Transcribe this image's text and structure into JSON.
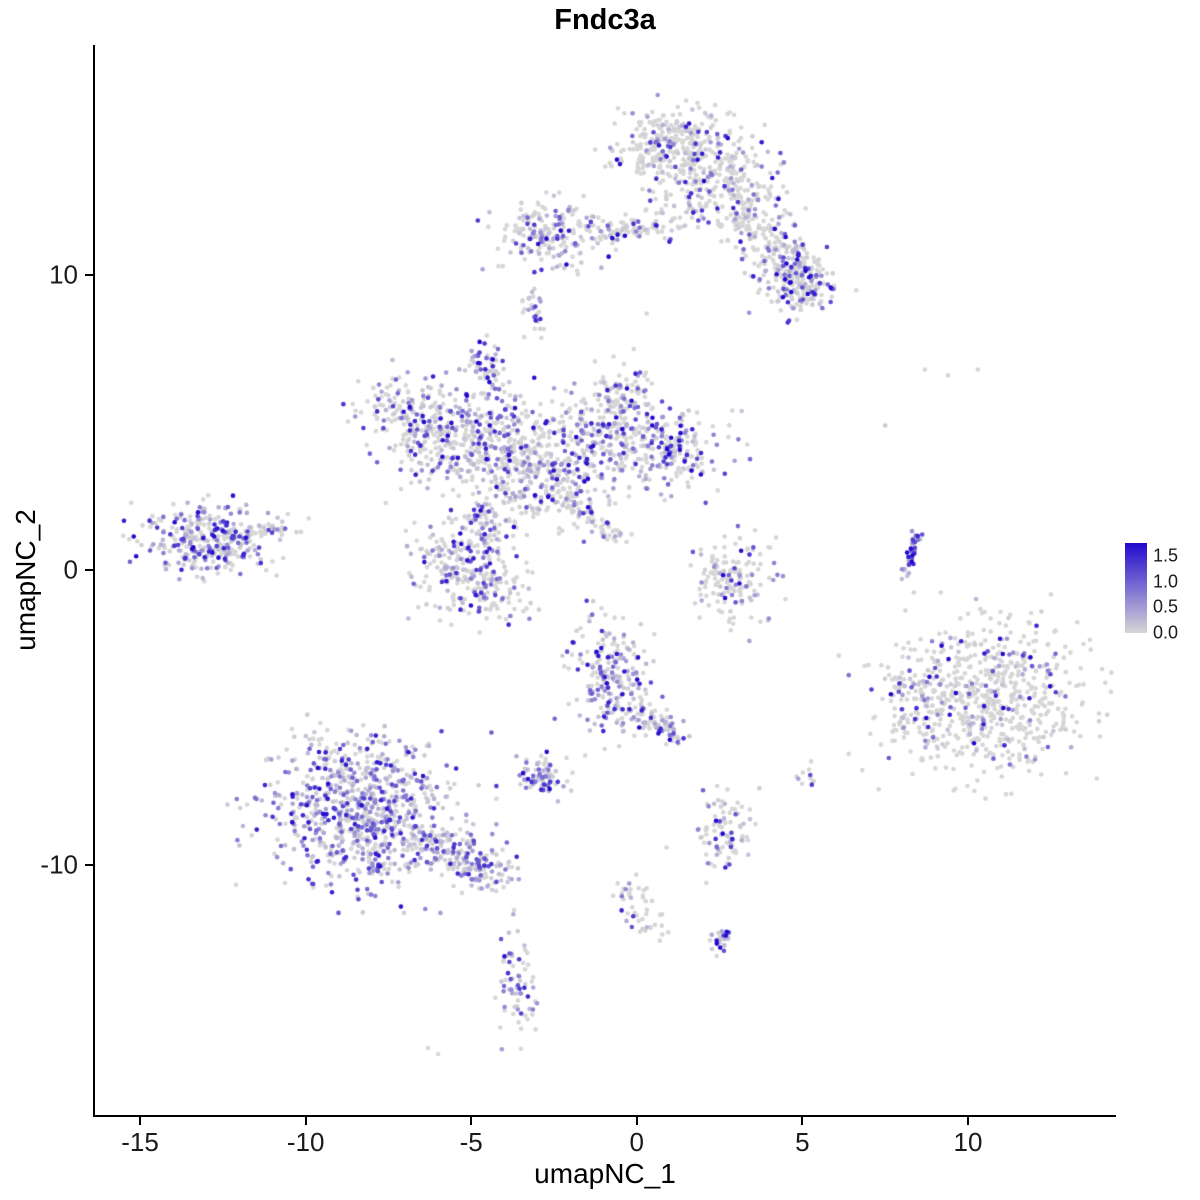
{
  "title": "Fndc3a",
  "axes": {
    "x_label": "umapNC_1",
    "y_label": "umapNC_2",
    "x_ticks": [
      {
        "v": -15,
        "label": "-15"
      },
      {
        "v": -10,
        "label": "-10"
      },
      {
        "v": -5,
        "label": "-5"
      },
      {
        "v": 0,
        "label": "0"
      },
      {
        "v": 5,
        "label": "5"
      },
      {
        "v": 10,
        "label": "10"
      }
    ],
    "y_ticks": [
      {
        "v": 10,
        "label": "10"
      },
      {
        "v": 0,
        "label": "0"
      },
      {
        "v": -10,
        "label": "-10"
      }
    ]
  },
  "legend": {
    "ticks": [
      {
        "v": 1.5,
        "label": "1.5"
      },
      {
        "v": 1.0,
        "label": "1.0"
      },
      {
        "v": 0.5,
        "label": "0.5"
      },
      {
        "v": 0.0,
        "label": "0.0"
      }
    ],
    "max": 1.75,
    "low_color": "#D6D6D6",
    "high_color": "#2209CE"
  },
  "chart_data": {
    "type": "scatter",
    "title": "Fndc3a",
    "xlabel": "umapNC_1",
    "ylabel": "umapNC_2",
    "xlim": [
      -16.36,
      14.44
    ],
    "ylim": [
      -18.47,
      17.8
    ],
    "grid": false,
    "legend_position": "right",
    "point_radius": 2.3,
    "seed": 42,
    "color_low": "#D6D6D6",
    "color_high": "#2209CE",
    "expr_max": 1.75,
    "clusters": [
      {
        "name": "top-blob-a",
        "kind": "gauss",
        "cx": 1.2,
        "cy": 14.4,
        "sx": 0.95,
        "sy": 0.65,
        "n": 300,
        "frac": 0.22,
        "strength": 1.0
      },
      {
        "name": "top-blob-b",
        "kind": "gauss",
        "cx": 2.3,
        "cy": 13.0,
        "sx": 1.0,
        "sy": 0.85,
        "n": 260,
        "frac": 0.3,
        "strength": 1.0
      },
      {
        "name": "top-arm",
        "kind": "line",
        "x1": 3.1,
        "y1": 12.4,
        "x2": 5.5,
        "y2": 9.4,
        "jx": 0.45,
        "jy": 0.4,
        "n": 240,
        "frac": 0.35,
        "strength": 1.0
      },
      {
        "name": "top-arm-tip",
        "kind": "gauss",
        "cx": 4.8,
        "cy": 9.7,
        "sx": 0.55,
        "sy": 0.5,
        "n": 130,
        "frac": 0.5,
        "strength": 1.1
      },
      {
        "name": "upper-left-blob",
        "kind": "gauss",
        "cx": -2.7,
        "cy": 11.4,
        "sx": 0.75,
        "sy": 0.5,
        "n": 190,
        "frac": 0.45,
        "strength": 1.0
      },
      {
        "name": "upper-bridge",
        "kind": "line",
        "x1": -1.6,
        "y1": 11.5,
        "x2": 0.8,
        "y2": 11.7,
        "jx": 0.25,
        "jy": 0.22,
        "n": 90,
        "frac": 0.3,
        "strength": 1.0
      },
      {
        "name": "upper-left-spur",
        "kind": "line",
        "x1": -3.2,
        "y1": 9.4,
        "x2": -3.0,
        "y2": 8.2,
        "jx": 0.15,
        "jy": 0.3,
        "n": 28,
        "frac": 0.4,
        "strength": 1.0
      },
      {
        "name": "violet-knot",
        "kind": "gauss",
        "cx": -4.6,
        "cy": 7.0,
        "sx": 0.28,
        "sy": 0.38,
        "n": 50,
        "frac": 0.85,
        "strength": 1.25
      },
      {
        "name": "center-left-top",
        "kind": "gauss",
        "cx": -6.9,
        "cy": 5.3,
        "sx": 0.7,
        "sy": 0.65,
        "n": 160,
        "frac": 0.45,
        "strength": 1.0
      },
      {
        "name": "center-left",
        "kind": "gauss",
        "cx": -5.6,
        "cy": 4.0,
        "sx": 0.8,
        "sy": 0.7,
        "n": 170,
        "frac": 0.42,
        "strength": 1.0
      },
      {
        "name": "center-mid-top",
        "kind": "gauss",
        "cx": -4.2,
        "cy": 4.7,
        "sx": 0.9,
        "sy": 0.85,
        "n": 220,
        "frac": 0.45,
        "strength": 1.0
      },
      {
        "name": "center-core",
        "kind": "gauss",
        "cx": -2.9,
        "cy": 3.2,
        "sx": 0.95,
        "sy": 0.8,
        "n": 270,
        "frac": 0.5,
        "strength": 1.0
      },
      {
        "name": "center-right-top",
        "kind": "gauss",
        "cx": -1.2,
        "cy": 4.5,
        "sx": 0.8,
        "sy": 0.8,
        "n": 200,
        "frac": 0.45,
        "strength": 1.0
      },
      {
        "name": "center-right",
        "kind": "gauss",
        "cx": 0.9,
        "cy": 4.1,
        "sx": 0.9,
        "sy": 0.7,
        "n": 230,
        "frac": 0.5,
        "strength": 1.05
      },
      {
        "name": "center-top-spur",
        "kind": "gauss",
        "cx": -0.4,
        "cy": 6.0,
        "sx": 0.5,
        "sy": 0.55,
        "n": 90,
        "frac": 0.45,
        "strength": 1.0
      },
      {
        "name": "center-tail",
        "kind": "line",
        "x1": -2.2,
        "y1": 2.5,
        "x2": -0.7,
        "y2": 1.1,
        "jx": 0.22,
        "jy": 0.2,
        "n": 70,
        "frac": 0.3,
        "strength": 1.0
      },
      {
        "name": "center-lower-link",
        "kind": "line",
        "x1": -4.8,
        "y1": 2.3,
        "x2": -4.3,
        "y2": 1.0,
        "jx": 0.25,
        "jy": 0.3,
        "n": 45,
        "frac": 0.4,
        "strength": 1.0
      },
      {
        "name": "lower-center-blob",
        "kind": "gauss",
        "cx": -5.2,
        "cy": 0.2,
        "sx": 0.85,
        "sy": 0.85,
        "n": 240,
        "frac": 0.5,
        "strength": 1.0
      },
      {
        "name": "lower-center-tail",
        "kind": "gauss",
        "cx": -4.2,
        "cy": -0.8,
        "sx": 0.5,
        "sy": 0.5,
        "n": 70,
        "frac": 0.4,
        "strength": 1.0
      },
      {
        "name": "left-island",
        "kind": "gauss",
        "cx": -12.8,
        "cy": 1.0,
        "sx": 1.05,
        "sy": 0.55,
        "n": 330,
        "frac": 0.6,
        "strength": 1.05
      },
      {
        "name": "left-island-tip",
        "kind": "line",
        "x1": -11.4,
        "y1": 1.3,
        "x2": -10.7,
        "y2": 1.5,
        "jx": 0.2,
        "jy": 0.15,
        "n": 25,
        "frac": 0.5,
        "strength": 1.0
      },
      {
        "name": "mid-right-crescent",
        "kind": "gauss",
        "cx": 3.0,
        "cy": -0.2,
        "sx": 0.7,
        "sy": 0.7,
        "n": 150,
        "frac": 0.25,
        "strength": 1.0
      },
      {
        "name": "right-streak",
        "kind": "line",
        "x1": 8.1,
        "y1": -0.3,
        "x2": 8.5,
        "y2": 1.2,
        "jx": 0.08,
        "jy": 0.12,
        "n": 40,
        "frac": 0.85,
        "strength": 1.3
      },
      {
        "name": "right-cloud",
        "kind": "gauss",
        "cx": 10.6,
        "cy": -4.4,
        "sx": 1.5,
        "sy": 1.3,
        "n": 640,
        "frac": 0.18,
        "strength": 1.1
      },
      {
        "name": "right-cloud-spur",
        "kind": "gauss",
        "cx": 8.3,
        "cy": -4.2,
        "sx": 0.45,
        "sy": 0.8,
        "n": 80,
        "frac": 0.3,
        "strength": 1.1
      },
      {
        "name": "bottom-left-mass",
        "kind": "gauss",
        "cx": -8.3,
        "cy": -8.4,
        "sx": 1.45,
        "sy": 1.15,
        "n": 760,
        "frac": 0.75,
        "strength": 0.95
      },
      {
        "name": "bottom-left-arm",
        "kind": "line",
        "x1": -6.1,
        "y1": -9.2,
        "x2": -4.2,
        "y2": -10.4,
        "jx": 0.5,
        "jy": 0.35,
        "n": 190,
        "frac": 0.6,
        "strength": 0.9
      },
      {
        "name": "bottom-left-fringe",
        "kind": "gauss",
        "cx": -8.6,
        "cy": -6.3,
        "sx": 1.0,
        "sy": 0.5,
        "n": 80,
        "frac": 0.55,
        "strength": 0.9
      },
      {
        "name": "bottom-center-blob",
        "kind": "gauss",
        "cx": -0.8,
        "cy": -3.7,
        "sx": 0.6,
        "sy": 0.95,
        "n": 210,
        "frac": 0.6,
        "strength": 1.0
      },
      {
        "name": "bottom-center-arm",
        "kind": "line",
        "x1": -0.3,
        "y1": -4.6,
        "x2": 1.3,
        "y2": -5.7,
        "jx": 0.3,
        "jy": 0.25,
        "n": 90,
        "frac": 0.45,
        "strength": 1.0
      },
      {
        "name": "violet-knot-lower",
        "kind": "gauss",
        "cx": -2.9,
        "cy": -7.0,
        "sx": 0.38,
        "sy": 0.3,
        "n": 75,
        "frac": 0.7,
        "strength": 1.1
      },
      {
        "name": "small-lower-right",
        "kind": "gauss",
        "cx": 2.6,
        "cy": -8.8,
        "sx": 0.4,
        "sy": 0.6,
        "n": 90,
        "frac": 0.45,
        "strength": 1.0
      },
      {
        "name": "tiny-right-dots",
        "kind": "gauss",
        "cx": 5.1,
        "cy": -7.0,
        "sx": 0.2,
        "sy": 0.2,
        "n": 10,
        "frac": 0.3,
        "strength": 1.0
      },
      {
        "name": "sparse-line-down",
        "kind": "line",
        "x1": -0.4,
        "y1": -10.6,
        "x2": 0.7,
        "y2": -12.5,
        "jx": 0.25,
        "jy": 0.3,
        "n": 45,
        "frac": 0.15,
        "strength": 1.0
      },
      {
        "name": "tiny-violet-dot",
        "kind": "gauss",
        "cx": 2.6,
        "cy": -12.5,
        "sx": 0.16,
        "sy": 0.28,
        "n": 24,
        "frac": 0.8,
        "strength": 1.2
      },
      {
        "name": "bottom-strip",
        "kind": "gauss",
        "cx": -3.6,
        "cy": -13.9,
        "sx": 0.3,
        "sy": 0.85,
        "n": 70,
        "frac": 0.55,
        "strength": 1.0
      },
      {
        "name": "stray-dots",
        "kind": "points",
        "pts": [
          [
            0.3,
            8.7
          ],
          [
            -3.4,
            7.9
          ],
          [
            7.5,
            4.9
          ],
          [
            8.7,
            6.8
          ],
          [
            9.4,
            6.6
          ],
          [
            10.3,
            6.8
          ],
          [
            -6.3,
            -16.2
          ],
          [
            -6.0,
            -16.4
          ],
          [
            2.1,
            -10.6
          ],
          [
            0.9,
            -9.4
          ],
          [
            3.4,
            -2.4
          ],
          [
            6.1,
            -2.9
          ]
        ],
        "frac": 0.3,
        "strength": 1.0
      }
    ]
  }
}
